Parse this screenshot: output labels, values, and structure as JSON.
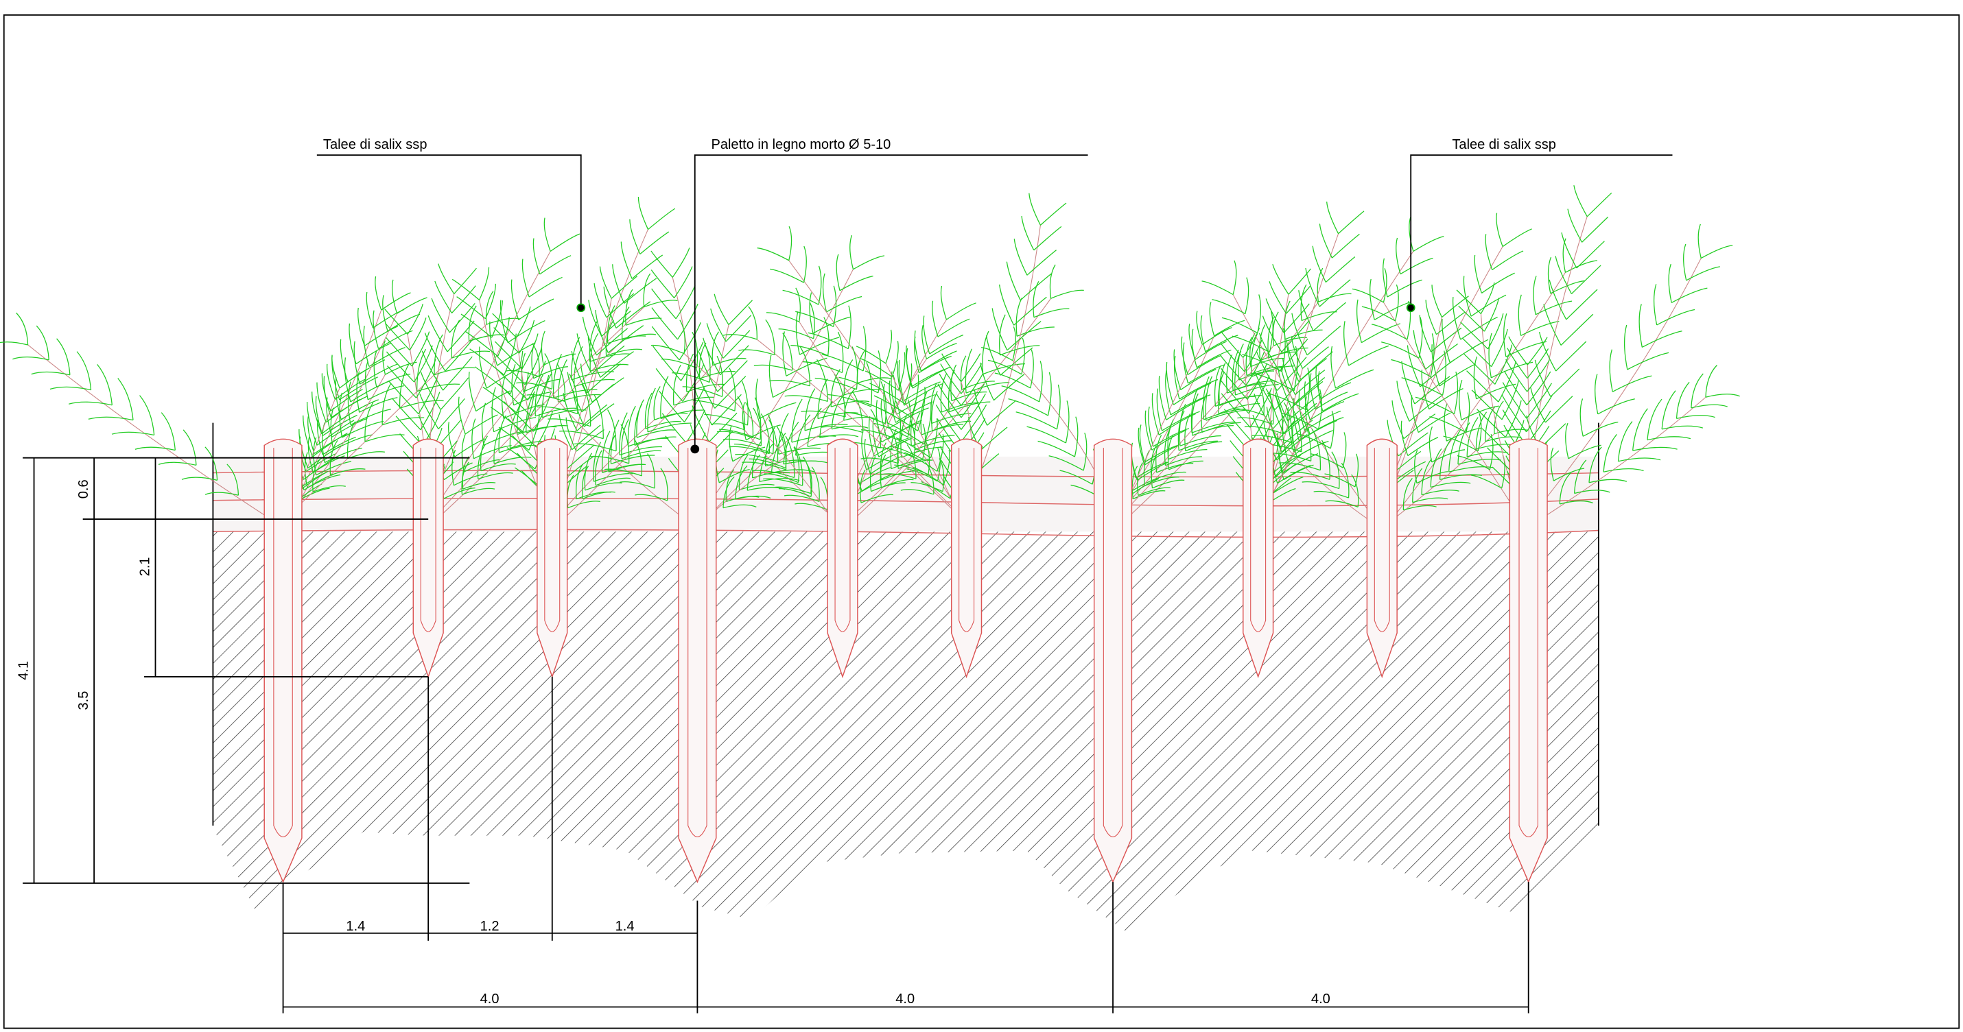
{
  "annotations": [
    {
      "label": "Talee di salix ssp"
    },
    {
      "label": "Paletto in legno morto Ø 5-10"
    },
    {
      "label": "Talee di salix ssp"
    }
  ],
  "vertical_dimensions": [
    {
      "label": "4.1"
    },
    {
      "label": "3.5"
    },
    {
      "label": "0.6"
    },
    {
      "label": "2.1"
    }
  ],
  "horizontal_dimensions": [
    {
      "label": "1.4"
    },
    {
      "label": "1.2"
    },
    {
      "label": "1.4"
    },
    {
      "label": "4.0"
    },
    {
      "label": "4.0"
    },
    {
      "label": "4.0"
    }
  ]
}
